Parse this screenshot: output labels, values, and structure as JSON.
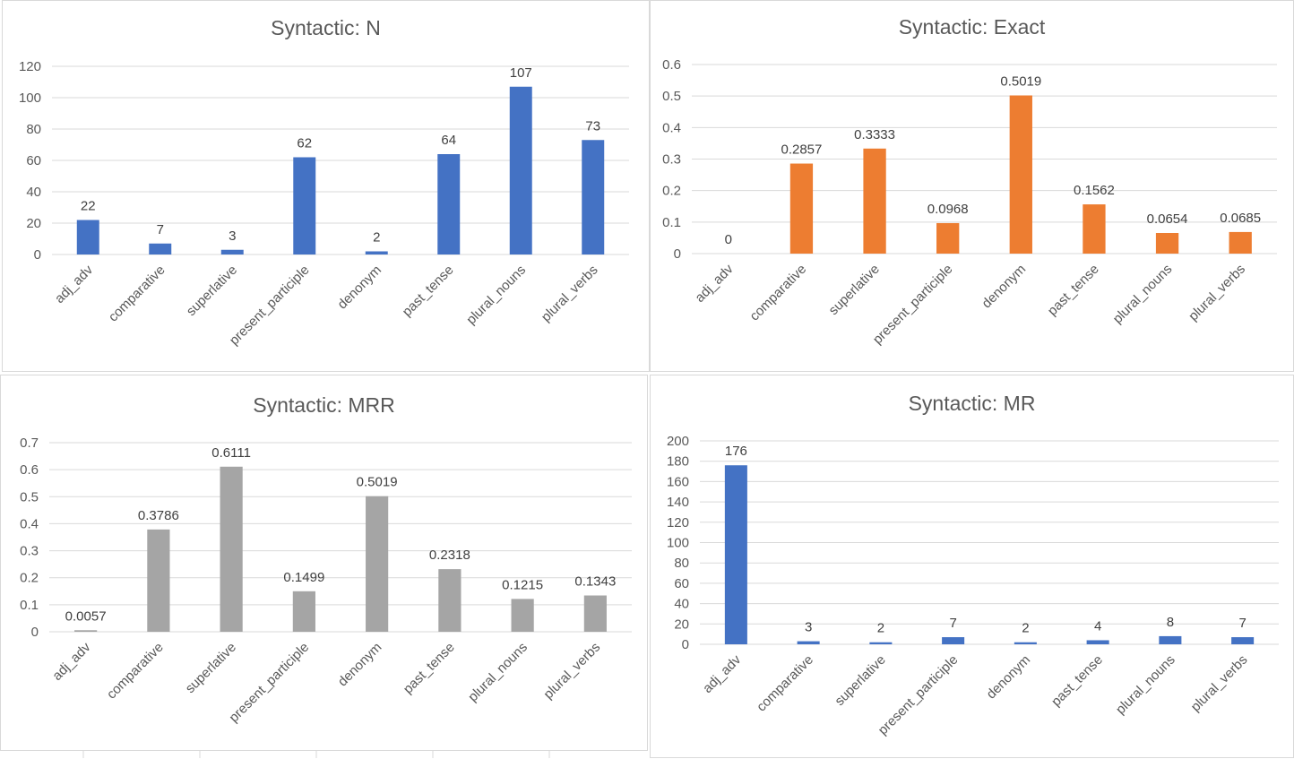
{
  "chart_data": [
    {
      "type": "bar",
      "title": "Syntactic: N",
      "categories": [
        "adj_adv",
        "comparative",
        "superlative",
        "present_participle",
        "denonym",
        "past_tense",
        "plural_nouns",
        "plural_verbs"
      ],
      "values": [
        22,
        7,
        3,
        62,
        2,
        64,
        107,
        73
      ],
      "value_labels": [
        "22",
        "7",
        "3",
        "62",
        "2",
        "64",
        "107",
        "73"
      ],
      "ylim": [
        0,
        120
      ],
      "yticks": [
        "0",
        "20",
        "40",
        "60",
        "80",
        "100",
        "120"
      ],
      "color": "#4472c4",
      "grid": true,
      "xlabel": "",
      "ylabel": ""
    },
    {
      "type": "bar",
      "title": "Syntactic: Exact",
      "categories": [
        "adj_adv",
        "comparative",
        "superlative",
        "present_participle",
        "denonym",
        "past_tense",
        "plural_nouns",
        "plural_verbs"
      ],
      "values": [
        0,
        0.2857,
        0.3333,
        0.0968,
        0.5019,
        0.1562,
        0.0654,
        0.0685
      ],
      "value_labels": [
        "0",
        "0.2857",
        "0.3333",
        "0.0968",
        "0.5019",
        "0.1562",
        "0.0654",
        "0.0685"
      ],
      "ylim": [
        0,
        0.6
      ],
      "yticks": [
        "0",
        "0.1",
        "0.2",
        "0.3",
        "0.4",
        "0.5",
        "0.6"
      ],
      "color": "#ed7d31",
      "grid": true,
      "xlabel": "",
      "ylabel": ""
    },
    {
      "type": "bar",
      "title": "Syntactic: MRR",
      "categories": [
        "adj_adv",
        "comparative",
        "superlative",
        "present_participle",
        "denonym",
        "past_tense",
        "plural_nouns",
        "plural_verbs"
      ],
      "values": [
        0.0057,
        0.3786,
        0.6111,
        0.1499,
        0.5019,
        0.2318,
        0.1215,
        0.1343
      ],
      "value_labels": [
        "0.0057",
        "0.3786",
        "0.6111",
        "0.1499",
        "0.5019",
        "0.2318",
        "0.1215",
        "0.1343"
      ],
      "ylim": [
        0,
        0.7
      ],
      "yticks": [
        "0",
        "0.1",
        "0.2",
        "0.3",
        "0.4",
        "0.5",
        "0.6",
        "0.7"
      ],
      "color": "#a5a5a5",
      "grid": true,
      "xlabel": "",
      "ylabel": ""
    },
    {
      "type": "bar",
      "title": "Syntactic: MR",
      "categories": [
        "adj_adv",
        "comparative",
        "superlative",
        "present_participle",
        "denonym",
        "past_tense",
        "plural_nouns",
        "plural_verbs"
      ],
      "values": [
        176,
        3,
        2,
        7,
        2,
        4,
        8,
        7
      ],
      "value_labels": [
        "176",
        "3",
        "2",
        "7",
        "2",
        "4",
        "8",
        "7"
      ],
      "ylim": [
        0,
        200
      ],
      "yticks": [
        "0",
        "20",
        "40",
        "60",
        "80",
        "100",
        "120",
        "140",
        "160",
        "180",
        "200"
      ],
      "color": "#4472c4",
      "grid": true,
      "xlabel": "",
      "ylabel": ""
    }
  ]
}
